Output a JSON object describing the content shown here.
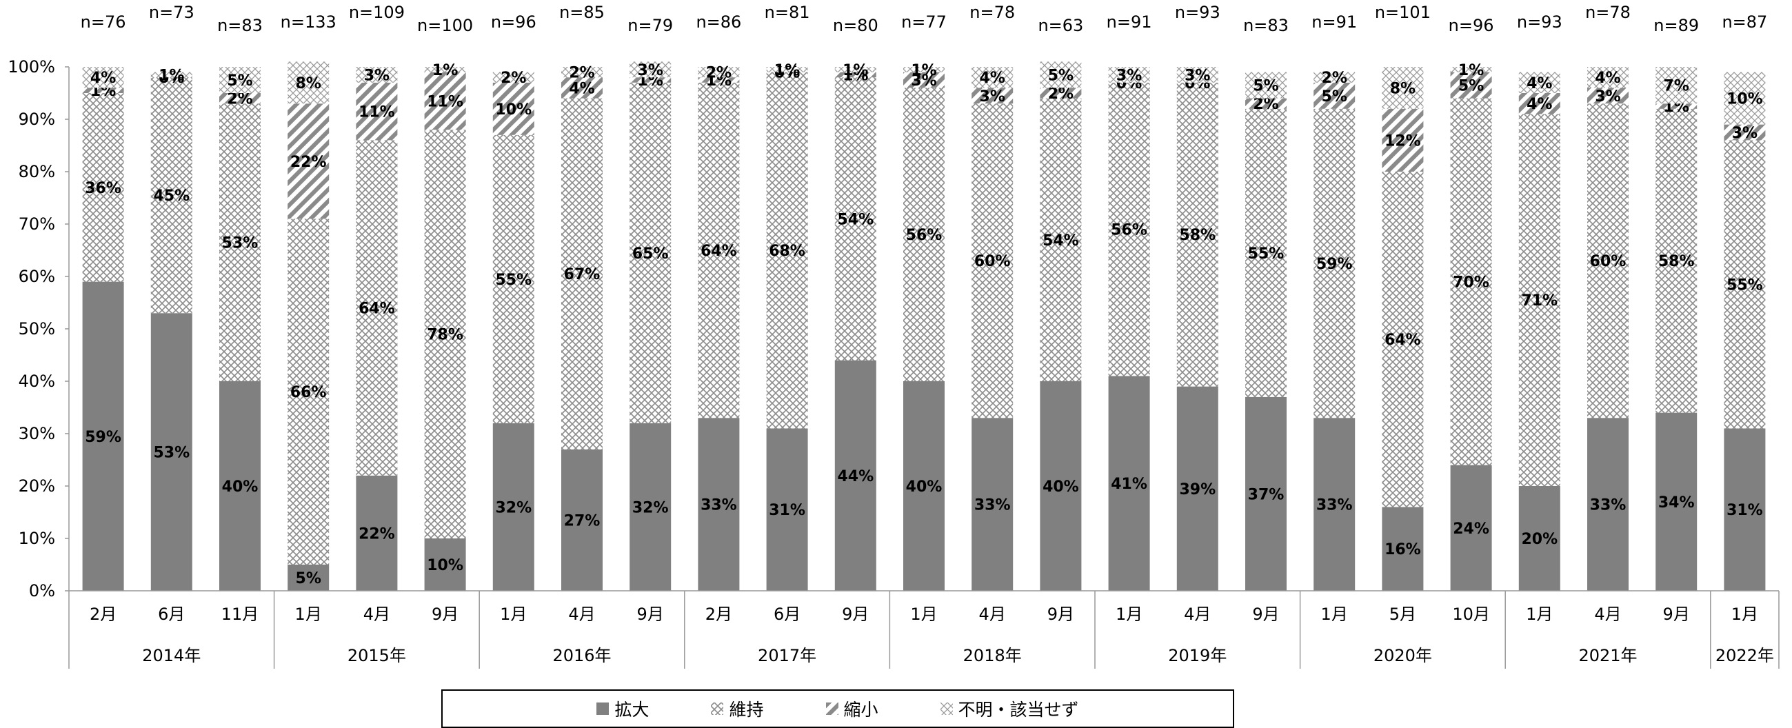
{
  "chart_data": {
    "type": "bar",
    "stacked": true,
    "ylim": [
      0,
      100
    ],
    "y_ticks": [
      "0%",
      "10%",
      "20%",
      "30%",
      "40%",
      "50%",
      "60%",
      "70%",
      "80%",
      "90%",
      "100%"
    ],
    "categories": [
      "2月",
      "6月",
      "11月",
      "1月",
      "4月",
      "9月",
      "1月",
      "4月",
      "9月",
      "2月",
      "6月",
      "9月",
      "1月",
      "4月",
      "9月",
      "1月",
      "4月",
      "9月",
      "1月",
      "5月",
      "10月",
      "1月",
      "4月",
      "9月",
      "1月"
    ],
    "groups": [
      {
        "label": "2014年",
        "count": 3
      },
      {
        "label": "2015年",
        "count": 3
      },
      {
        "label": "2016年",
        "count": 3
      },
      {
        "label": "2017年",
        "count": 3
      },
      {
        "label": "2018年",
        "count": 3
      },
      {
        "label": "2019年",
        "count": 3
      },
      {
        "label": "2020年",
        "count": 3
      },
      {
        "label": "2021年",
        "count": 3
      },
      {
        "label": "2022年",
        "count": 1
      }
    ],
    "n_labels": [
      "n=76",
      "n=73",
      "n=83",
      "n=133",
      "n=109",
      "n=100",
      "n=96",
      "n=85",
      "n=79",
      "n=86",
      "n=81",
      "n=80",
      "n=77",
      "n=78",
      "n=63",
      "n=91",
      "n=93",
      "n=83",
      "n=91",
      "n=101",
      "n=96",
      "n=93",
      "n=78",
      "n=89",
      "n=87"
    ],
    "series": [
      {
        "name": "拡大",
        "color": "#808080",
        "pattern": "solid",
        "values": [
          59,
          53,
          40,
          5,
          22,
          10,
          32,
          27,
          32,
          33,
          31,
          44,
          40,
          33,
          40,
          41,
          39,
          37,
          33,
          16,
          24,
          20,
          33,
          34,
          31
        ]
      },
      {
        "name": "維持",
        "color": "#bdbdbd",
        "pattern": "diamond",
        "values": [
          36,
          45,
          53,
          66,
          64,
          78,
          55,
          67,
          65,
          64,
          68,
          54,
          56,
          60,
          54,
          56,
          58,
          55,
          59,
          64,
          70,
          71,
          60,
          58,
          55
        ]
      },
      {
        "name": "縮小",
        "color": "#8a8a8a",
        "pattern": "diagonal",
        "values": [
          1,
          0,
          2,
          22,
          11,
          11,
          10,
          4,
          1,
          1,
          0,
          1,
          3,
          3,
          2,
          0,
          0,
          2,
          5,
          12,
          5,
          4,
          3,
          1,
          3
        ]
      },
      {
        "name": "不明・該当せず",
        "color": "#a0a0a0",
        "pattern": "cross",
        "values": [
          4,
          1,
          5,
          8,
          3,
          1,
          2,
          2,
          3,
          2,
          1,
          1,
          1,
          4,
          5,
          3,
          3,
          5,
          2,
          8,
          1,
          4,
          4,
          7,
          10
        ]
      }
    ],
    "legend": [
      "拡大",
      "維持",
      "縮小",
      "不明・該当せず"
    ],
    "legend_position": "bottom"
  }
}
